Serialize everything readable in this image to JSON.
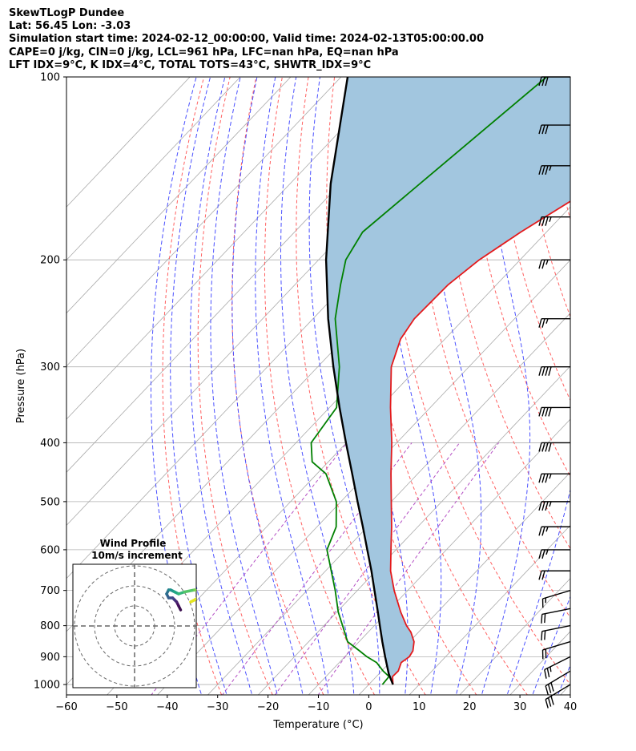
{
  "header": {
    "title": "SkewTLogP Dundee",
    "location": "Lat: 56.45   Lon: -3.03",
    "times": "Simulation start time: 2024-02-12_00:00:00, Valid time: 2024-02-13T05:00:00.00",
    "params": "CAPE=0 j/kg, CIN=0 j/kg, LCL=961 hPa, LFC=nan hPa, EQ=nan hPa",
    "indices": "LFT IDX=9°C, K IDX=4°C, TOTAL TOTS=43°C, SHWTR_IDX=9°C"
  },
  "chart_data": {
    "type": "line",
    "xlabel": "Temperature (°C)",
    "ylabel": "Pressure (hPa)",
    "xlim": [
      -60,
      40
    ],
    "ylim": [
      1040,
      100
    ],
    "yscale": "log",
    "x_ticks": [
      "−60",
      "−50",
      "−40",
      "−30",
      "−20",
      "−10",
      "0",
      "10",
      "20",
      "30",
      "40"
    ],
    "x_tick_values": [
      -60,
      -50,
      -40,
      -30,
      -20,
      -10,
      0,
      10,
      20,
      30,
      40
    ],
    "y_ticks": [
      "100",
      "200",
      "300",
      "400",
      "500",
      "600",
      "700",
      "800",
      "900",
      "1000"
    ],
    "y_tick_values": [
      100,
      200,
      300,
      400,
      500,
      600,
      700,
      800,
      900,
      1000
    ],
    "grid": true,
    "skew": true,
    "series": [
      {
        "role": "temperature",
        "color": "#e41a1c",
        "pressure": [
          1000,
          970,
          950,
          920,
          900,
          880,
          850,
          820,
          800,
          760,
          700,
          650,
          600,
          550,
          500,
          450,
          400,
          350,
          300,
          270,
          250,
          220,
          200,
          180,
          160,
          140,
          130,
          120,
          110,
          100
        ],
        "temperature": [
          4.8,
          3.2,
          3.3,
          2.3,
          2.8,
          2.4,
          0.9,
          -1.5,
          -3.6,
          -7.3,
          -12.7,
          -17.1,
          -21.0,
          -25.2,
          -30.0,
          -35.3,
          -41.0,
          -47.9,
          -55.4,
          -58.8,
          -59.9,
          -59.6,
          -58.1,
          -55.1,
          -51.0,
          -46.6,
          -46.7,
          -46.9,
          -46.7,
          -47.0
        ]
      },
      {
        "role": "dewpoint",
        "color": "#008000",
        "pressure": [
          1000,
          970,
          950,
          920,
          900,
          880,
          850,
          800,
          760,
          700,
          600,
          550,
          500,
          450,
          430,
          400,
          350,
          300,
          250,
          220,
          200,
          180,
          140,
          100
        ],
        "temperature": [
          2.7,
          2.5,
          0.3,
          -2.6,
          -5.6,
          -8.2,
          -12.3,
          -16.3,
          -19.7,
          -24.4,
          -33.7,
          -36.2,
          -40.9,
          -48.2,
          -53.2,
          -57.0,
          -58.6,
          -65.7,
          -75.6,
          -80.9,
          -84.6,
          -86.5,
          -83.4,
          -79.2
        ]
      },
      {
        "role": "parcel",
        "color": "#000000",
        "pressure": [
          1000,
          961,
          900,
          850,
          800,
          750,
          700,
          650,
          600,
          550,
          500,
          450,
          400,
          350,
          300,
          250,
          200,
          150,
          100
        ],
        "temperature": [
          4.8,
          2.0,
          -2.0,
          -5.4,
          -8.9,
          -12.6,
          -16.6,
          -20.9,
          -25.7,
          -30.9,
          -36.7,
          -43.0,
          -50.1,
          -58.0,
          -66.9,
          -77.0,
          -88.5,
          -101.9,
          -118.7
        ]
      }
    ],
    "wind_barbs": [
      {
        "p": 1000,
        "u": 10,
        "v": 6,
        "kt": 30
      },
      {
        "p": 950,
        "u": 10,
        "v": 6,
        "kt": 30
      },
      {
        "p": 900,
        "u": 10,
        "v": 5,
        "kt": 25
      },
      {
        "p": 850,
        "u": 10,
        "v": 3,
        "kt": 20
      },
      {
        "p": 800,
        "u": 10,
        "v": 2,
        "kt": 20
      },
      {
        "p": 750,
        "u": 10,
        "v": 2,
        "kt": 20
      },
      {
        "p": 700,
        "u": 10,
        "v": 3,
        "kt": 15
      },
      {
        "p": 650,
        "u": 10,
        "v": 0,
        "kt": 20
      },
      {
        "p": 600,
        "u": 10,
        "v": 0,
        "kt": 25
      },
      {
        "p": 550,
        "u": 10,
        "v": 0,
        "kt": 25
      },
      {
        "p": 500,
        "u": 10,
        "v": 0,
        "kt": 35
      },
      {
        "p": 450,
        "u": 10,
        "v": 0,
        "kt": 35
      },
      {
        "p": 400,
        "u": 10,
        "v": 0,
        "kt": 40
      },
      {
        "p": 350,
        "u": 10,
        "v": 0,
        "kt": 40
      },
      {
        "p": 300,
        "u": 10,
        "v": 0,
        "kt": 40
      },
      {
        "p": 250,
        "u": 10,
        "v": 0,
        "kt": 25
      },
      {
        "p": 200,
        "u": 10,
        "v": 0,
        "kt": 25
      },
      {
        "p": 170,
        "u": 10,
        "v": 0,
        "kt": 35
      },
      {
        "p": 140,
        "u": 10,
        "v": 0,
        "kt": 35
      },
      {
        "p": 120,
        "u": 10,
        "v": 0,
        "kt": 30
      },
      {
        "p": 100,
        "u": 10,
        "v": 0,
        "kt": 30
      }
    ],
    "hodograph": {
      "title": "Wind Profile",
      "subtitle": "10m/s increment",
      "u": [
        23,
        22,
        21,
        20,
        19,
        17,
        16,
        17,
        18,
        20,
        22,
        25,
        30,
        34,
        33,
        30,
        28
      ],
      "v": [
        -8,
        -10,
        -12,
        -13,
        -14,
        -14,
        -16,
        -18,
        -18,
        -17,
        -16,
        -17,
        -18,
        -17,
        -15,
        -13,
        -12
      ]
    },
    "colors": {
      "cape_fill": "#a2c6df",
      "dry_adiabat": "#ff6060",
      "moist_adiabat": "#4a50ff",
      "mixing_ratio": "#b44fc4",
      "isotherm": "#aaaaaa"
    }
  }
}
